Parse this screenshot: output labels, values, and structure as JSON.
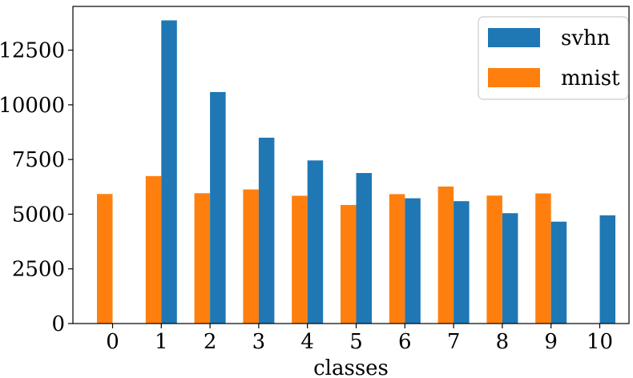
{
  "chart_data": {
    "type": "bar",
    "categories": [
      "0",
      "1",
      "2",
      "3",
      "4",
      "5",
      "6",
      "7",
      "8",
      "9",
      "10"
    ],
    "series": [
      {
        "name": "mnist",
        "color": "#ff7f0e",
        "values": [
          5923,
          6742,
          5958,
          6131,
          5842,
          5421,
          5918,
          6265,
          5851,
          5949,
          null
        ]
      },
      {
        "name": "svhn",
        "color": "#1f77b4",
        "values": [
          null,
          13861,
          10585,
          8497,
          7458,
          6882,
          5727,
          5595,
          5045,
          4659,
          4948
        ]
      }
    ],
    "xlabel": "classes",
    "ylabel": "",
    "ylim": [
      0,
      14500
    ],
    "yticks": [
      0,
      2500,
      5000,
      7500,
      10000,
      12500
    ],
    "ytick_labels": [
      "0",
      "2500",
      "5000",
      "7500",
      "10000",
      "12500"
    ],
    "legend": {
      "placement": "top-right",
      "order": [
        "svhn",
        "mnist"
      ]
    },
    "grid": false
  }
}
